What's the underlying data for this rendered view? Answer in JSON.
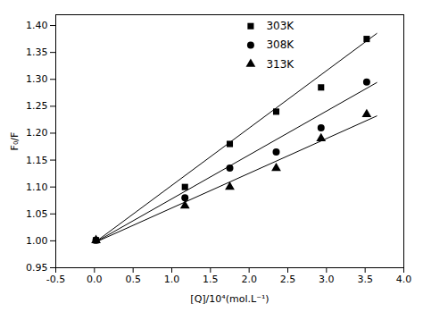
{
  "chart_data": {
    "type": "scatter",
    "xlabel": "[Q]/10⁴(mol.L⁻¹)",
    "ylabel": "F₀/F",
    "xlim": [
      -0.5,
      4.0
    ],
    "ylim": [
      0.95,
      1.42
    ],
    "xticks": [
      -0.5,
      {
        "value": 0.0,
        "label": "0.0"
      },
      0.5,
      {
        "value": 1.0,
        "label": "1.0"
      },
      1.5,
      {
        "value": 2.0,
        "label": "2.0"
      },
      2.5,
      {
        "value": 3.0,
        "label": "3.0"
      },
      3.5,
      {
        "value": 4.0,
        "label": "4.0"
      }
    ],
    "yticks": [
      0.95,
      {
        "value": 1.0,
        "label": "1.00"
      },
      1.05,
      {
        "value": 1.1,
        "label": "1.10"
      },
      1.15,
      {
        "value": 1.2,
        "label": "1.20"
      },
      1.25,
      {
        "value": 1.3,
        "label": "1.30"
      },
      1.35,
      {
        "value": 1.4,
        "label": "1.40"
      }
    ],
    "legend": "upper right",
    "series": [
      {
        "name": "303K",
        "type": "scatter",
        "marker": "square",
        "color": "#000000",
        "x": [
          0.02,
          1.17,
          1.75,
          2.35,
          2.93,
          3.52
        ],
        "values": [
          1.001,
          1.1,
          1.18,
          1.24,
          1.285,
          1.375
        ]
      },
      {
        "name": "308K",
        "type": "scatter",
        "marker": "circle",
        "color": "#000000",
        "x": [
          0.02,
          1.17,
          1.75,
          2.35,
          2.93,
          3.52
        ],
        "values": [
          1.001,
          1.08,
          1.135,
          1.165,
          1.21,
          1.295
        ]
      },
      {
        "name": "313K",
        "type": "scatter",
        "marker": "triangle",
        "color": "#000000",
        "x": [
          0.02,
          1.17,
          1.75,
          2.35,
          2.93,
          3.52
        ],
        "values": [
          1.001,
          1.065,
          1.1,
          1.135,
          1.19,
          1.235
        ]
      },
      {
        "type": "line",
        "color": "#000000",
        "x": [
          0.0,
          3.65
        ],
        "values": [
          0.9965,
          1.385225
        ]
      },
      {
        "type": "line",
        "color": "#000000",
        "x": [
          0.0,
          3.65
        ],
        "values": [
          0.9965,
          1.293975
        ]
      },
      {
        "type": "line",
        "color": "#000000",
        "x": [
          0.0,
          3.65
        ],
        "values": [
          0.9965,
          1.231925
        ]
      }
    ]
  }
}
